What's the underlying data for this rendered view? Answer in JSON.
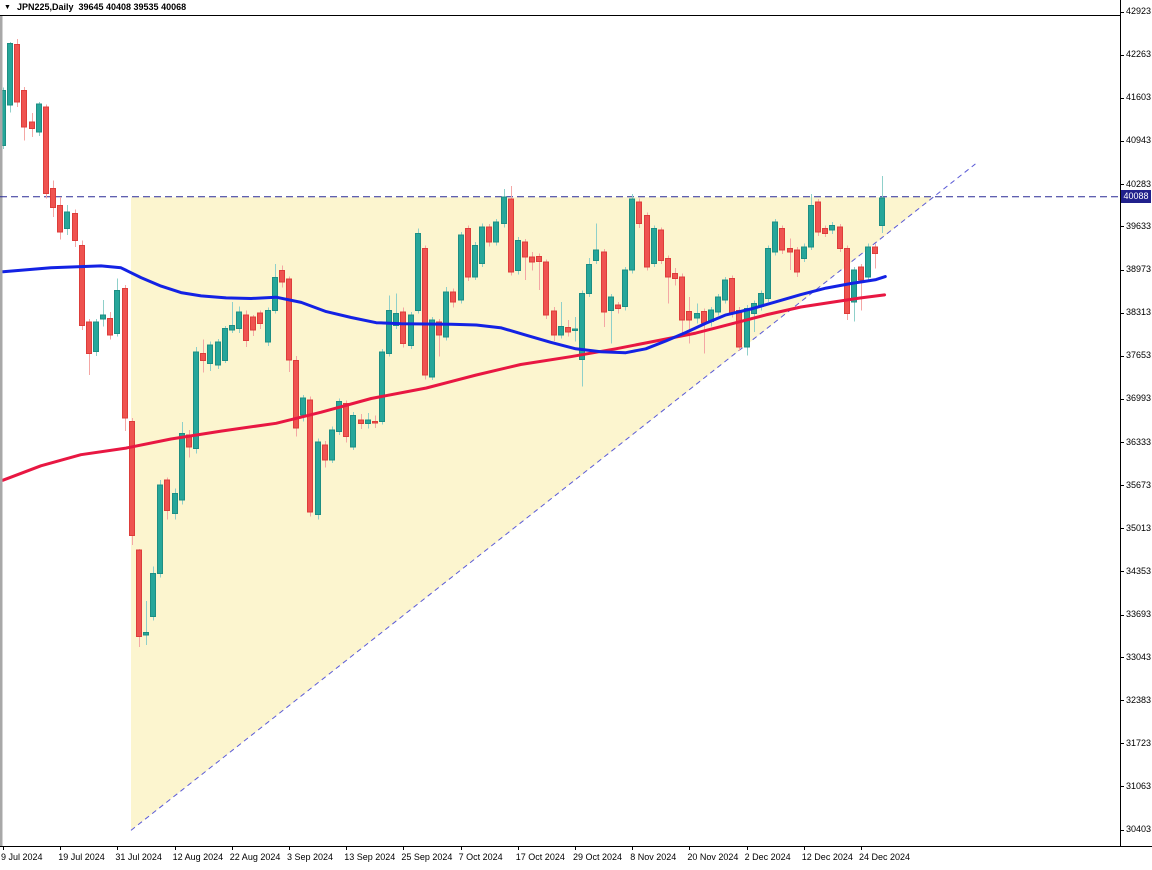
{
  "title_bar": {
    "dropdown_icon": "▼",
    "symbol_period": "JPN225,Daily",
    "ohlc_text": "39645 40408 39535 40068"
  },
  "price_axis": {
    "labels": [
      42923,
      42263,
      41603,
      40943,
      40283,
      39633,
      38973,
      38313,
      37653,
      36993,
      36333,
      35673,
      35013,
      34353,
      33693,
      33043,
      32383,
      31723,
      31063,
      30403
    ],
    "current_price_label": "40088"
  },
  "time_axis": {
    "labels": [
      "9 Jul 2024",
      "19 Jul 2024",
      "31 Jul 2024",
      "12 Aug 2024",
      "22 Aug 2024",
      "3 Sep 2024",
      "13 Sep 2024",
      "25 Sep 2024",
      "7 Oct 2024",
      "17 Oct 2024",
      "29 Oct 2024",
      "8 Nov 2024",
      "20 Nov 2024",
      "2 Dec 2024",
      "12 Dec 2024",
      "24 Dec 2024"
    ],
    "bars_per_tick": 8
  },
  "colors": {
    "background": "#ffffff",
    "window_edge": "#a8a8a8",
    "frame": "#000000",
    "up_body": "#26a69a",
    "up_border": "#1d8e83",
    "up_wick": "#8fd0ca",
    "down_body": "#ef5350",
    "down_border": "#dd3d3a",
    "down_wick": "#f4a7a5",
    "ma_blue": "#1322e4",
    "ma_red": "#e81742",
    "pattern_fill": "#fcf5cf",
    "trendline_dash": "#5b5bd6",
    "price_line_dash": "#2c2c96",
    "price_label_bg": "#20208c",
    "price_label_fg": "#ffffff",
    "text": "#000000"
  },
  "chart_data": {
    "type": "candlestick",
    "symbol": "JPN225",
    "timeframe": "Daily",
    "title": "JPN225,Daily",
    "last_bar": {
      "open": 39645,
      "high": 40408,
      "low": 39535,
      "close": 40068
    },
    "current_price": 40088,
    "y_range": {
      "top": 42923,
      "bottom": 30403
    },
    "x_first_date": "9 Jul 2024",
    "x_last_date": "24 Dec 2024",
    "grid": false,
    "candles": [
      [
        40875,
        41760,
        40820,
        41715
      ],
      [
        41490,
        42460,
        41380,
        42430
      ],
      [
        42420,
        42500,
        41460,
        41540
      ],
      [
        41715,
        41765,
        40950,
        41155
      ],
      [
        41230,
        41370,
        41000,
        41130
      ],
      [
        41080,
        41540,
        41020,
        41510
      ],
      [
        41460,
        41500,
        40060,
        40135
      ],
      [
        40215,
        40340,
        39780,
        39920
      ],
      [
        39955,
        40085,
        39430,
        39545
      ],
      [
        39600,
        39960,
        39500,
        39855
      ],
      [
        39830,
        39890,
        39320,
        39420
      ],
      [
        39345,
        39420,
        38045,
        38120
      ],
      [
        38170,
        38220,
        37360,
        37690
      ],
      [
        37715,
        38220,
        37650,
        38170
      ],
      [
        38215,
        38505,
        38100,
        38275
      ],
      [
        38225,
        38320,
        37900,
        37970
      ],
      [
        37995,
        38835,
        37950,
        38655
      ],
      [
        38680,
        38740,
        36500,
        36700
      ],
      [
        36650,
        36700,
        34760,
        34900
      ],
      [
        34680,
        34700,
        33200,
        33360
      ],
      [
        33380,
        33900,
        33230,
        33420
      ],
      [
        33660,
        34430,
        33600,
        34325
      ],
      [
        34325,
        35750,
        34260,
        35675
      ],
      [
        35750,
        35790,
        35150,
        35290
      ],
      [
        35240,
        35620,
        35150,
        35545
      ],
      [
        35445,
        36640,
        35380,
        36465
      ],
      [
        36440,
        36520,
        36100,
        36260
      ],
      [
        36235,
        37790,
        36160,
        37715
      ],
      [
        37690,
        37900,
        37400,
        37585
      ],
      [
        37535,
        37870,
        37420,
        37815
      ],
      [
        37510,
        37910,
        37450,
        37865
      ],
      [
        37585,
        38110,
        37540,
        38070
      ],
      [
        38045,
        38475,
        38000,
        38120
      ],
      [
        38070,
        38410,
        38000,
        38325
      ],
      [
        38275,
        38350,
        37790,
        37890
      ],
      [
        38245,
        38280,
        37960,
        38045
      ],
      [
        38310,
        38345,
        38060,
        38150
      ],
      [
        37865,
        38390,
        37800,
        38350
      ],
      [
        38350,
        39060,
        38300,
        38855
      ],
      [
        38960,
        39035,
        38700,
        38785
      ],
      [
        38830,
        38870,
        37405,
        37585
      ],
      [
        37585,
        37650,
        36420,
        36545
      ],
      [
        36750,
        37050,
        36650,
        37005
      ],
      [
        36980,
        37030,
        35190,
        35260
      ],
      [
        35220,
        36390,
        35150,
        36335
      ],
      [
        36290,
        36350,
        35940,
        36060
      ],
      [
        36060,
        36570,
        36010,
        36520
      ],
      [
        36495,
        37000,
        36440,
        36950
      ],
      [
        36925,
        36970,
        36330,
        36420
      ],
      [
        36260,
        36790,
        36210,
        36740
      ],
      [
        36670,
        36760,
        36530,
        36620
      ],
      [
        36620,
        36780,
        36540,
        36670
      ],
      [
        36650,
        36740,
        36550,
        36630
      ],
      [
        36645,
        37760,
        36600,
        37715
      ],
      [
        37690,
        38580,
        37640,
        38350
      ],
      [
        38120,
        38605,
        38060,
        38300
      ],
      [
        38325,
        38390,
        37780,
        37840
      ],
      [
        37815,
        38320,
        37760,
        38275
      ],
      [
        38350,
        39605,
        38300,
        39525
      ],
      [
        39295,
        39340,
        37290,
        37360
      ],
      [
        37330,
        38250,
        37280,
        38200
      ],
      [
        38170,
        38220,
        37640,
        37970
      ],
      [
        37945,
        38705,
        37890,
        38630
      ],
      [
        38630,
        38680,
        38390,
        38475
      ],
      [
        38505,
        39550,
        38450,
        39500
      ],
      [
        39600,
        39650,
        38800,
        38860
      ],
      [
        38860,
        39395,
        38810,
        39345
      ],
      [
        39065,
        39675,
        39010,
        39625
      ],
      [
        39625,
        39670,
        39330,
        39395
      ],
      [
        39395,
        39750,
        39340,
        39700
      ],
      [
        39675,
        40205,
        39620,
        40080
      ],
      [
        40055,
        40255,
        38880,
        38935
      ],
      [
        38960,
        39470,
        38900,
        39420
      ],
      [
        39395,
        39440,
        38810,
        39165
      ],
      [
        39165,
        39240,
        38960,
        39090
      ],
      [
        39170,
        39220,
        38660,
        39100
      ],
      [
        39090,
        39130,
        38220,
        38275
      ],
      [
        38340,
        38400,
        37880,
        37970
      ],
      [
        37970,
        38480,
        37920,
        38100
      ],
      [
        38085,
        38200,
        37950,
        38015
      ],
      [
        38040,
        38250,
        37870,
        38060
      ],
      [
        37600,
        38650,
        37180,
        38605
      ],
      [
        38605,
        39150,
        38550,
        39050
      ],
      [
        39115,
        39675,
        39060,
        39270
      ],
      [
        39245,
        39290,
        38095,
        38325
      ],
      [
        38350,
        38600,
        37840,
        38555
      ],
      [
        38430,
        38480,
        38300,
        38380
      ],
      [
        38405,
        39010,
        38350,
        38965
      ],
      [
        38965,
        40130,
        38910,
        40055
      ],
      [
        40005,
        40060,
        39610,
        39675
      ],
      [
        39800,
        39850,
        38960,
        39015
      ],
      [
        39065,
        39650,
        39010,
        39600
      ],
      [
        39575,
        39620,
        39060,
        39115
      ],
      [
        39140,
        39190,
        38455,
        38860
      ],
      [
        38910,
        39000,
        38730,
        38835
      ],
      [
        38860,
        38910,
        37970,
        38200
      ],
      [
        38330,
        38555,
        37840,
        38200
      ],
      [
        38230,
        38455,
        38150,
        38300
      ],
      [
        38330,
        38380,
        37690,
        38155
      ],
      [
        38180,
        38400,
        38100,
        38355
      ],
      [
        38325,
        38600,
        38270,
        38555
      ],
      [
        38505,
        38860,
        38450,
        38810
      ],
      [
        38835,
        38880,
        38240,
        38300
      ],
      [
        38350,
        38400,
        37730,
        37790
      ],
      [
        37790,
        38430,
        37660,
        38380
      ],
      [
        38300,
        38500,
        38020,
        38455
      ],
      [
        38405,
        38650,
        38350,
        38605
      ],
      [
        38530,
        39340,
        38480,
        39295
      ],
      [
        39245,
        39750,
        39190,
        39700
      ],
      [
        39600,
        39650,
        39210,
        39270
      ],
      [
        39295,
        39447,
        38965,
        39245
      ],
      [
        39270,
        39320,
        38860,
        38940
      ],
      [
        39145,
        39370,
        39090,
        39320
      ],
      [
        39320,
        40130,
        39270,
        39955
      ],
      [
        40005,
        40055,
        39490,
        39550
      ],
      [
        39600,
        39650,
        39470,
        39525
      ],
      [
        39575,
        39700,
        39520,
        39650
      ],
      [
        39625,
        39670,
        39240,
        39295
      ],
      [
        39295,
        39340,
        38200,
        38300
      ],
      [
        38480,
        39010,
        38175,
        38965
      ],
      [
        39015,
        39060,
        38350,
        38810
      ],
      [
        38860,
        39370,
        38810,
        39320
      ],
      [
        39320,
        39370,
        38990,
        39220
      ],
      [
        39645,
        40408,
        39535,
        40068
      ]
    ],
    "ma_blue": [
      [
        0,
        38940
      ],
      [
        6.7,
        39000
      ],
      [
        13.7,
        39030
      ],
      [
        16.5,
        39000
      ],
      [
        19.3,
        38850
      ],
      [
        22.1,
        38720
      ],
      [
        24.9,
        38620
      ],
      [
        27.7,
        38570
      ],
      [
        31.2,
        38540
      ],
      [
        34.7,
        38530
      ],
      [
        38.2,
        38550
      ],
      [
        41.7,
        38470
      ],
      [
        45.2,
        38330
      ],
      [
        48.7,
        38240
      ],
      [
        52.2,
        38160
      ],
      [
        55.7,
        38145
      ],
      [
        59.2,
        38140
      ],
      [
        62.7,
        38135
      ],
      [
        66.2,
        38125
      ],
      [
        69.7,
        38080
      ],
      [
        73.1,
        37970
      ],
      [
        76.6,
        37860
      ],
      [
        80.1,
        37760
      ],
      [
        83.6,
        37715
      ],
      [
        87.1,
        37700
      ],
      [
        89.9,
        37760
      ],
      [
        92.7,
        37880
      ],
      [
        95.5,
        38010
      ],
      [
        98.3,
        38150
      ],
      [
        101.1,
        38280
      ],
      [
        104.6,
        38370
      ],
      [
        108.1,
        38480
      ],
      [
        111.6,
        38590
      ],
      [
        115.1,
        38690
      ],
      [
        118.6,
        38760
      ],
      [
        122.1,
        38820
      ],
      [
        123.4,
        38865
      ]
    ],
    "ma_red": [
      [
        0,
        35750
      ],
      [
        5.3,
        35970
      ],
      [
        10.9,
        36140
      ],
      [
        17.2,
        36240
      ],
      [
        23.5,
        36380
      ],
      [
        30.5,
        36500
      ],
      [
        38.2,
        36620
      ],
      [
        44.5,
        36790
      ],
      [
        51.5,
        37000
      ],
      [
        59.2,
        37160
      ],
      [
        66.2,
        37360
      ],
      [
        72.4,
        37520
      ],
      [
        79.4,
        37640
      ],
      [
        85.7,
        37760
      ],
      [
        91.3,
        37880
      ],
      [
        96.9,
        38000
      ],
      [
        101.1,
        38120
      ],
      [
        106.7,
        38280
      ],
      [
        111.6,
        38400
      ],
      [
        115.8,
        38470
      ],
      [
        120,
        38540
      ],
      [
        123.3,
        38585
      ]
    ],
    "pattern": {
      "name": "ascending-triangle",
      "triangle": {
        "i_left": 17.9,
        "i_apex": 130.2,
        "top_price": 40080,
        "bottom_left_price": 30390
      },
      "trendline": {
        "i1": 17.9,
        "price1": 30390,
        "i2": 136.0,
        "price2": 40590
      },
      "resistance_price": 40088
    }
  }
}
